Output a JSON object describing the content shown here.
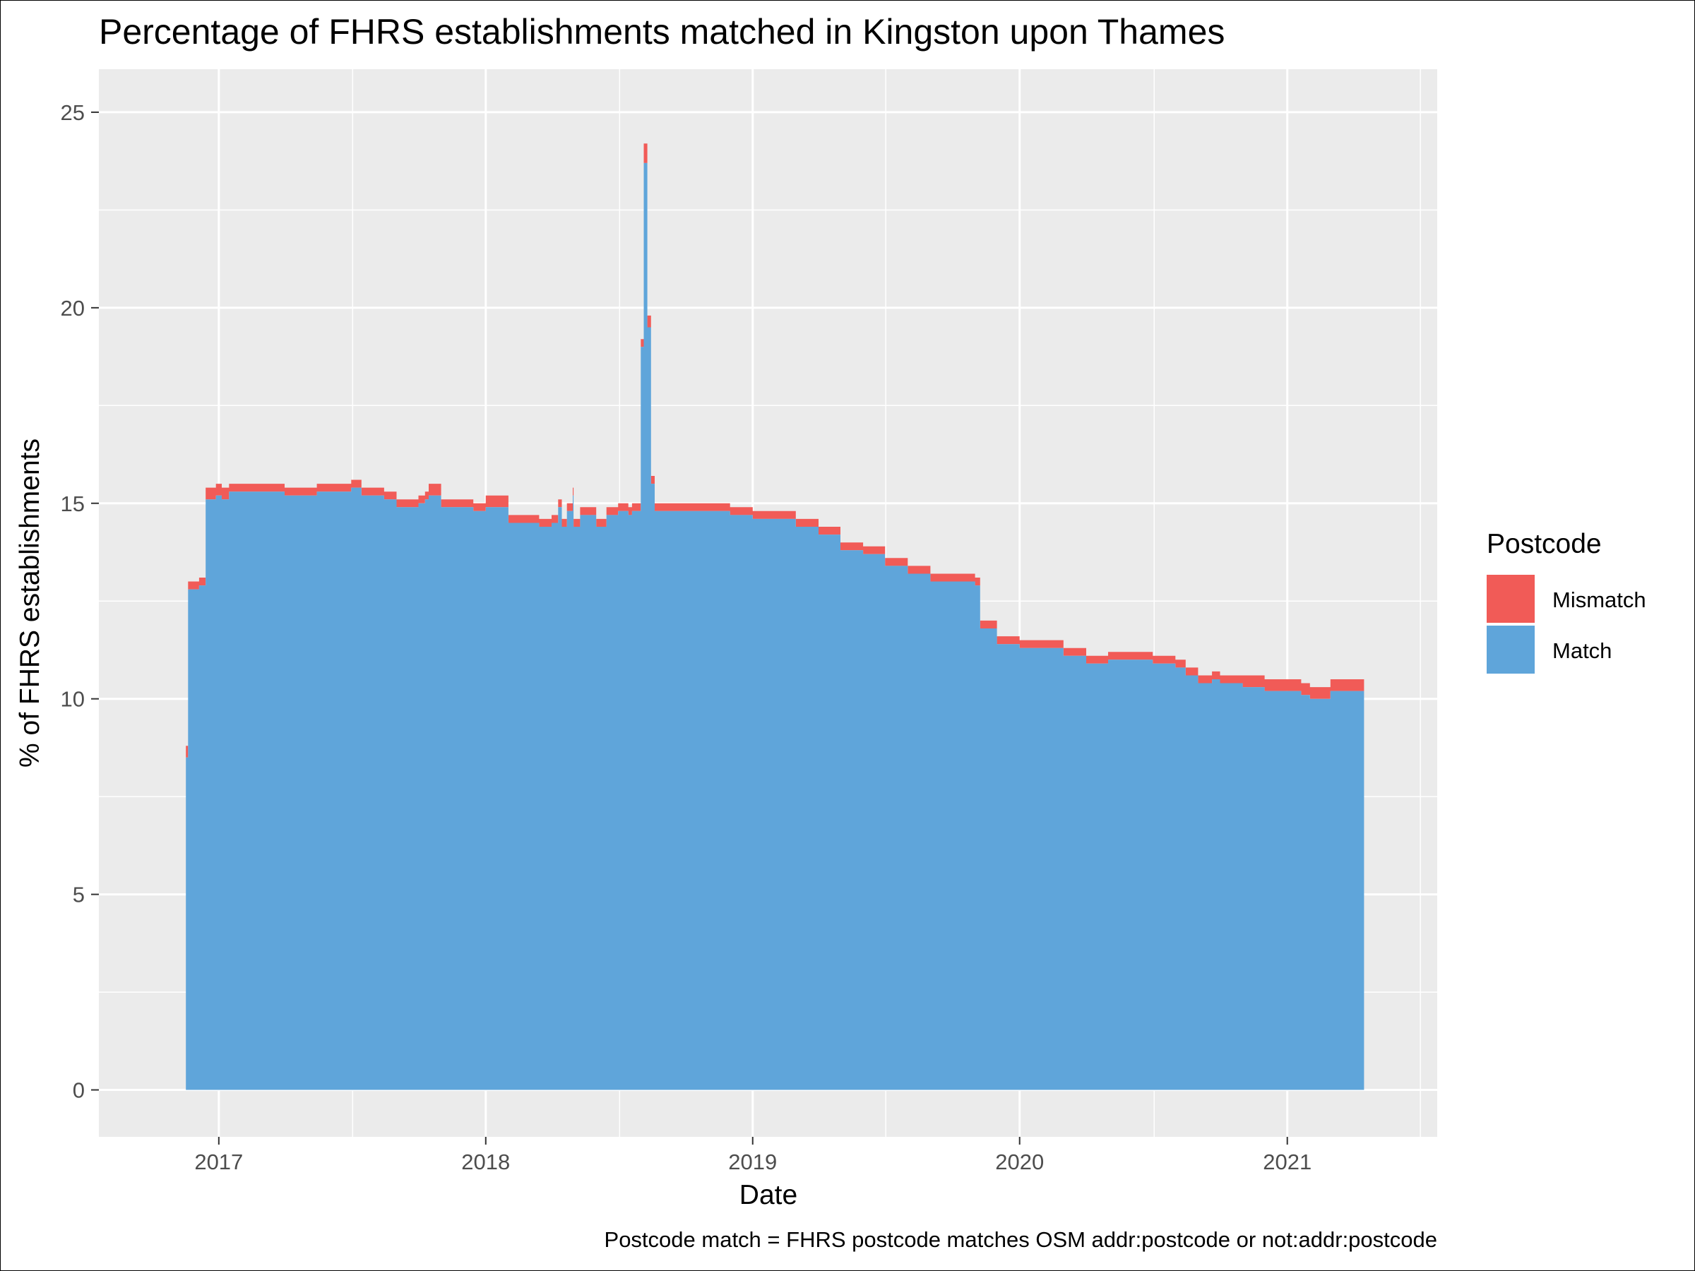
{
  "chart_data": {
    "type": "area",
    "stacked": true,
    "title": "Percentage of FHRS establishments matched in Kingston upon Thames",
    "xlabel": "Date",
    "ylabel": "% of FHRS establishments",
    "caption": "Postcode match = FHRS postcode matches OSM addr:postcode or not:addr:postcode",
    "x_ticks": [
      "2017",
      "2018",
      "2019",
      "2020",
      "2021"
    ],
    "y_ticks": [
      "0",
      "5",
      "10",
      "15",
      "20",
      "25"
    ],
    "xlim": [
      "2016-07-21",
      "2021-07-25"
    ],
    "ylim": [
      -1.2,
      26.1
    ],
    "grid": true,
    "legend": {
      "title": "Postcode",
      "position": "right",
      "entries": [
        {
          "label": "Mismatch",
          "color": "#F15B57"
        },
        {
          "label": "Match",
          "color": "#5FA5DA"
        }
      ]
    },
    "x": [
      "2016-11-13",
      "2016-11-17",
      "2016-11-20",
      "2016-12-05",
      "2016-12-14",
      "2016-12-28",
      "2017-01-05",
      "2017-01-15",
      "2017-02-15",
      "2017-04-01",
      "2017-05-15",
      "2017-06-15",
      "2017-07-01",
      "2017-07-15",
      "2017-08-15",
      "2017-09-01",
      "2017-09-20",
      "2017-10-01",
      "2017-10-10",
      "2017-10-15",
      "2017-11-01",
      "2017-12-15",
      "2018-01-01",
      "2018-02-01",
      "2018-03-15",
      "2018-04-01",
      "2018-04-10",
      "2018-04-15",
      "2018-04-22",
      "2018-04-30",
      "2018-05-01",
      "2018-05-10",
      "2018-06-01",
      "2018-06-15",
      "2018-07-01",
      "2018-07-15",
      "2018-07-20",
      "2018-08-01",
      "2018-08-05",
      "2018-08-10",
      "2018-08-15",
      "2018-08-20",
      "2018-09-01",
      "2018-10-01",
      "2018-11-01",
      "2018-12-01",
      "2019-01-01",
      "2019-02-01",
      "2019-03-01",
      "2019-04-01",
      "2019-05-01",
      "2019-06-01",
      "2019-07-01",
      "2019-08-01",
      "2019-09-01",
      "2019-10-01",
      "2019-11-01",
      "2019-11-08",
      "2019-12-01",
      "2019-12-10",
      "2020-01-01",
      "2020-02-01",
      "2020-03-01",
      "2020-04-01",
      "2020-05-01",
      "2020-06-01",
      "2020-07-01",
      "2020-08-01",
      "2020-08-15",
      "2020-09-01",
      "2020-09-20",
      "2020-10-01",
      "2020-11-01",
      "2020-12-01",
      "2021-01-01",
      "2021-01-20",
      "2021-02-01",
      "2021-03-01",
      "2021-04-16"
    ],
    "series": [
      {
        "name": "Match",
        "values": [
          0.0,
          8.5,
          12.8,
          12.9,
          15.1,
          15.2,
          15.1,
          15.3,
          15.3,
          15.2,
          15.3,
          15.3,
          15.4,
          15.2,
          15.1,
          14.9,
          14.9,
          15.0,
          15.1,
          15.2,
          14.9,
          14.8,
          14.9,
          14.5,
          14.4,
          14.5,
          14.9,
          14.4,
          14.8,
          15.2,
          14.4,
          14.7,
          14.4,
          14.7,
          14.8,
          14.7,
          14.8,
          19.0,
          23.7,
          19.5,
          15.5,
          14.8,
          14.8,
          14.8,
          14.8,
          14.7,
          14.6,
          14.6,
          14.4,
          14.2,
          13.8,
          13.7,
          13.4,
          13.2,
          13.0,
          13.0,
          12.9,
          11.8,
          11.4,
          11.4,
          11.3,
          11.3,
          11.1,
          10.9,
          11.0,
          11.0,
          10.9,
          10.8,
          10.6,
          10.4,
          10.5,
          10.4,
          10.3,
          10.2,
          10.2,
          10.1,
          10.0,
          10.2,
          10.2
        ]
      },
      {
        "name": "Mismatch",
        "values": [
          0.0,
          0.3,
          0.2,
          0.2,
          0.3,
          0.3,
          0.3,
          0.2,
          0.2,
          0.2,
          0.2,
          0.2,
          0.2,
          0.2,
          0.2,
          0.2,
          0.2,
          0.2,
          0.2,
          0.3,
          0.2,
          0.2,
          0.3,
          0.2,
          0.2,
          0.2,
          0.2,
          0.2,
          0.2,
          0.2,
          0.2,
          0.2,
          0.2,
          0.2,
          0.2,
          0.2,
          0.2,
          0.2,
          0.5,
          0.3,
          0.2,
          0.2,
          0.2,
          0.2,
          0.2,
          0.2,
          0.2,
          0.2,
          0.2,
          0.2,
          0.2,
          0.2,
          0.2,
          0.2,
          0.2,
          0.2,
          0.2,
          0.2,
          0.2,
          0.2,
          0.2,
          0.2,
          0.2,
          0.2,
          0.2,
          0.2,
          0.2,
          0.2,
          0.2,
          0.2,
          0.2,
          0.2,
          0.3,
          0.3,
          0.3,
          0.3,
          0.3,
          0.3,
          0.3
        ]
      }
    ]
  }
}
